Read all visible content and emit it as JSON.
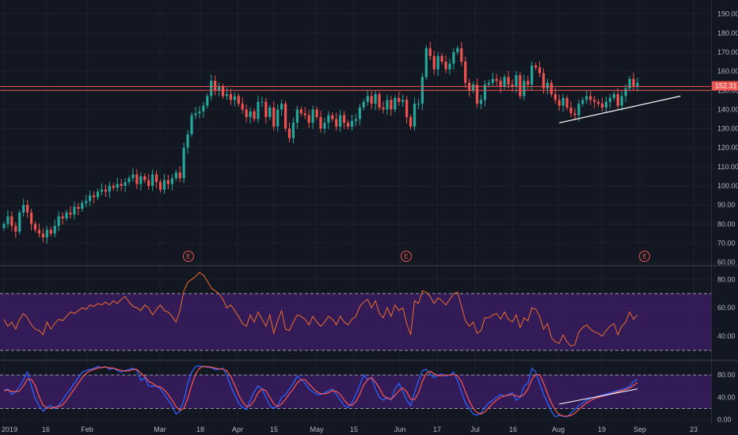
{
  "chart_data": [
    {
      "type": "candlestick",
      "panel": "price",
      "x_labels": [
        "2019",
        "16",
        "Feb",
        "Mar",
        "18",
        "Apr",
        "15",
        "May",
        "15",
        "Jun",
        "17",
        "Jul",
        "16",
        "Aug",
        "19",
        "Sep",
        "23"
      ],
      "y_ticks": [
        60,
        70,
        80,
        90,
        100,
        110,
        120,
        130,
        140,
        150,
        160,
        170,
        180,
        190
      ],
      "y_tick_labels": [
        "60.00",
        "70.00",
        "80.00",
        "90.00",
        "100.00",
        "110.00",
        "120.00",
        "130.00",
        "140.00",
        "150.00",
        "160.00",
        "170.00",
        "180.00",
        "190.00"
      ],
      "ylim": [
        59,
        194
      ],
      "last_price": 152.31,
      "last_price_label": "152.31",
      "horizontal_lines": [
        152,
        150
      ],
      "trendline": {
        "from": 133,
        "to": 147
      },
      "earnings_marker_label": "E",
      "earnings_markers": 3,
      "colors": {
        "up": "#26a69a",
        "down": "#ef5350",
        "line": "#ef5350",
        "trend": "#ffffff"
      },
      "closes": [
        80,
        84,
        79,
        76,
        86,
        90,
        86,
        80,
        77,
        75,
        73,
        77,
        75,
        79,
        84,
        83,
        86,
        85,
        89,
        88,
        91,
        92,
        95,
        94,
        97,
        98,
        97,
        100,
        99,
        101,
        100,
        102,
        104,
        106,
        101,
        105,
        103,
        100,
        106,
        102,
        98,
        103,
        101,
        104,
        107,
        104,
        120,
        127,
        137,
        138,
        139,
        142,
        147,
        155,
        150,
        152,
        147,
        148,
        145,
        147,
        143,
        140,
        136,
        139,
        135,
        144,
        144,
        136,
        141,
        131,
        140,
        143,
        130,
        125,
        133,
        140,
        138,
        137,
        133,
        140,
        136,
        130,
        133,
        137,
        135,
        131,
        137,
        133,
        131,
        134,
        135,
        141,
        144,
        147,
        143,
        148,
        141,
        140,
        145,
        140,
        146,
        144,
        145,
        136,
        131,
        143,
        143,
        157,
        172,
        168,
        161,
        168,
        165,
        161,
        164,
        170,
        172,
        165,
        154,
        150,
        153,
        143,
        145,
        153,
        154,
        156,
        155,
        152,
        157,
        153,
        152,
        158,
        147,
        155,
        153,
        163,
        162,
        159,
        151,
        154,
        148,
        145,
        142,
        146,
        141,
        138,
        137,
        143,
        145,
        147,
        145,
        144,
        143,
        141,
        144,
        146,
        148,
        142,
        147,
        151,
        156,
        152,
        154
      ]
    },
    {
      "type": "line",
      "panel": "rsi",
      "y_ticks": [
        40,
        60,
        80
      ],
      "y_tick_labels": [
        "40.00",
        "60.00",
        "80.00"
      ],
      "ylim": [
        25,
        88
      ],
      "band": [
        30,
        70
      ],
      "colors": {
        "line": "#ef6c2a",
        "band": "#3f1d69",
        "guide": "#9598a1"
      },
      "values": [
        52,
        47,
        50,
        45,
        52,
        56,
        53,
        48,
        45,
        44,
        41,
        50,
        45,
        49,
        52,
        51,
        54,
        57,
        56,
        58,
        60,
        59,
        62,
        61,
        63,
        62,
        64,
        62,
        65,
        63,
        66,
        68,
        64,
        61,
        60,
        58,
        62,
        60,
        55,
        59,
        62,
        58,
        57,
        54,
        50,
        58,
        72,
        78,
        80,
        82,
        85,
        83,
        79,
        74,
        72,
        70,
        66,
        60,
        62,
        58,
        54,
        49,
        47,
        55,
        50,
        57,
        52,
        47,
        55,
        42,
        51,
        58,
        45,
        44,
        50,
        55,
        54,
        52,
        48,
        54,
        50,
        47,
        50,
        54,
        52,
        48,
        54,
        50,
        48,
        52,
        54,
        61,
        64,
        66,
        60,
        65,
        56,
        53,
        60,
        54,
        62,
        58,
        60,
        49,
        41,
        65,
        63,
        72,
        71,
        68,
        63,
        67,
        65,
        62,
        66,
        70,
        71,
        61,
        51,
        47,
        50,
        42,
        44,
        53,
        53,
        55,
        56,
        52,
        57,
        52,
        50,
        55,
        46,
        53,
        51,
        60,
        59,
        54,
        45,
        49,
        39,
        36,
        35,
        41,
        36,
        33,
        34,
        43,
        46,
        48,
        45,
        43,
        42,
        40,
        44,
        47,
        49,
        41,
        47,
        50,
        57,
        52,
        55
      ]
    },
    {
      "type": "line",
      "panel": "stochastic",
      "y_ticks": [
        0,
        40,
        80
      ],
      "y_tick_labels": [
        "0.00",
        "40.00",
        "80.00"
      ],
      "ylim": [
        -2,
        100
      ],
      "band": [
        20,
        80
      ],
      "colors": {
        "k": "#2962ff",
        "d": "#ef5350",
        "band": "#3f1d69",
        "guide": "#9598a1",
        "trend": "#ffffff"
      },
      "k": [
        52,
        55,
        45,
        50,
        60,
        72,
        85,
        60,
        38,
        25,
        15,
        22,
        25,
        20,
        25,
        35,
        45,
        55,
        65,
        75,
        85,
        88,
        90,
        92,
        95,
        93,
        95,
        90,
        92,
        88,
        85,
        88,
        90,
        92,
        88,
        70,
        75,
        60,
        60,
        60,
        55,
        45,
        35,
        25,
        10,
        15,
        35,
        65,
        85,
        95,
        96,
        95,
        94,
        93,
        90,
        90,
        92,
        80,
        60,
        45,
        30,
        22,
        18,
        35,
        50,
        60,
        55,
        40,
        25,
        20,
        25,
        40,
        45,
        55,
        65,
        78,
        72,
        65,
        55,
        50,
        45,
        45,
        48,
        52,
        55,
        45,
        35,
        25,
        22,
        30,
        45,
        62,
        80,
        72,
        75,
        55,
        40,
        35,
        40,
        35,
        55,
        65,
        50,
        35,
        25,
        48,
        70,
        88,
        90,
        82,
        75,
        80,
        82,
        78,
        80,
        85,
        70,
        50,
        30,
        20,
        10,
        8,
        12,
        22,
        30,
        35,
        40,
        45,
        42,
        45,
        48,
        35,
        40,
        60,
        65,
        92,
        85,
        65,
        45,
        30,
        15,
        5,
        8,
        6,
        5,
        12,
        18,
        25,
        30,
        35,
        38,
        40,
        42,
        44,
        46,
        48,
        50,
        52,
        54,
        56,
        60,
        68,
        72
      ]
    }
  ]
}
